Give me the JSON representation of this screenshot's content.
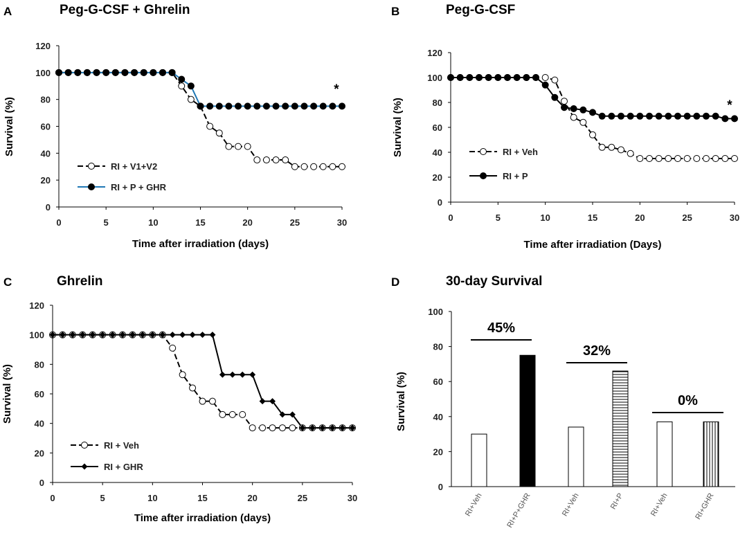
{
  "chart_data": [
    {
      "panel": "A",
      "type": "line",
      "title": "Peg-G-CSF + Ghrelin",
      "xlabel": "Time after irradiation (days)",
      "ylabel": "Survival (%)",
      "xlim": [
        0,
        30
      ],
      "ylim": [
        0,
        120
      ],
      "xticks": [
        0,
        5,
        10,
        15,
        20,
        25,
        30
      ],
      "yticks": [
        0,
        20,
        40,
        60,
        80,
        100,
        120
      ],
      "annotation": "*",
      "series": [
        {
          "name": "RI + V1+V2",
          "marker": "open-circle",
          "line_color": "#000000",
          "dashed": true,
          "x": [
            0,
            1,
            2,
            3,
            4,
            5,
            6,
            7,
            8,
            9,
            10,
            11,
            12,
            13,
            14,
            15,
            16,
            17,
            18,
            19,
            20,
            21,
            22,
            23,
            24,
            25,
            26,
            27,
            28,
            29,
            30
          ],
          "y": [
            100,
            100,
            100,
            100,
            100,
            100,
            100,
            100,
            100,
            100,
            100,
            100,
            100,
            90,
            80,
            75,
            60,
            55,
            45,
            45,
            45,
            35,
            35,
            35,
            35,
            30,
            30,
            30,
            30,
            30,
            30
          ]
        },
        {
          "name": "RI + P + GHR",
          "marker": "filled-circle",
          "line_color": "#1f77b4",
          "dashed": false,
          "x": [
            0,
            1,
            2,
            3,
            4,
            5,
            6,
            7,
            8,
            9,
            10,
            11,
            12,
            13,
            14,
            15,
            16,
            17,
            18,
            19,
            20,
            21,
            22,
            23,
            24,
            25,
            26,
            27,
            28,
            29,
            30
          ],
          "y": [
            100,
            100,
            100,
            100,
            100,
            100,
            100,
            100,
            100,
            100,
            100,
            100,
            100,
            95,
            90,
            75,
            75,
            75,
            75,
            75,
            75,
            75,
            75,
            75,
            75,
            75,
            75,
            75,
            75,
            75,
            75
          ]
        }
      ]
    },
    {
      "panel": "B",
      "type": "line",
      "title": "Peg-G-CSF",
      "xlabel": "Time after irradiation (Days)",
      "ylabel": "Survival (%)",
      "xlim": [
        0,
        30
      ],
      "ylim": [
        0,
        120
      ],
      "xticks": [
        0,
        5,
        10,
        15,
        20,
        25,
        30
      ],
      "yticks": [
        0,
        20,
        40,
        60,
        80,
        100,
        120
      ],
      "annotation": "*",
      "series": [
        {
          "name": "RI + Veh",
          "marker": "open-circle",
          "line_color": "#000000",
          "dashed": true,
          "x": [
            0,
            1,
            2,
            3,
            4,
            5,
            6,
            7,
            8,
            9,
            10,
            11,
            12,
            13,
            14,
            15,
            16,
            17,
            18,
            19,
            20,
            21,
            22,
            23,
            24,
            25,
            26,
            27,
            28,
            29,
            30
          ],
          "y": [
            100,
            100,
            100,
            100,
            100,
            100,
            100,
            100,
            100,
            100,
            100,
            98,
            81,
            68,
            64,
            54,
            44,
            44,
            42,
            39,
            35,
            35,
            35,
            35,
            35,
            35,
            35,
            35,
            35,
            35,
            35
          ]
        },
        {
          "name": "RI + P",
          "marker": "filled-circle",
          "line_color": "#000000",
          "dashed": false,
          "x": [
            0,
            1,
            2,
            3,
            4,
            5,
            6,
            7,
            8,
            9,
            10,
            11,
            12,
            13,
            14,
            15,
            16,
            17,
            18,
            19,
            20,
            21,
            22,
            23,
            24,
            25,
            26,
            27,
            28,
            29,
            30
          ],
          "y": [
            100,
            100,
            100,
            100,
            100,
            100,
            100,
            100,
            100,
            100,
            94,
            84,
            76,
            75,
            74,
            72,
            69,
            69,
            69,
            69,
            69,
            69,
            69,
            69,
            69,
            69,
            69,
            69,
            69,
            67,
            67
          ]
        }
      ]
    },
    {
      "panel": "C",
      "type": "line",
      "title": "Ghrelin",
      "xlabel": "Time after irradiation (days)",
      "ylabel": "Survival (%)",
      "xlim": [
        0,
        30
      ],
      "ylim": [
        0,
        120
      ],
      "xticks": [
        0,
        5,
        10,
        15,
        20,
        25,
        30
      ],
      "yticks": [
        0,
        20,
        40,
        60,
        80,
        100,
        120
      ],
      "series": [
        {
          "name": "RI + Veh",
          "marker": "open-circle",
          "line_color": "#000000",
          "dashed": true,
          "x": [
            0,
            1,
            2,
            3,
            4,
            5,
            6,
            7,
            8,
            9,
            10,
            11,
            12,
            13,
            14,
            15,
            16,
            17,
            18,
            19,
            20,
            21,
            22,
            23,
            24,
            25,
            26,
            27,
            28,
            29,
            30
          ],
          "y": [
            100,
            100,
            100,
            100,
            100,
            100,
            100,
            100,
            100,
            100,
            100,
            100,
            91,
            73,
            64,
            55,
            55,
            46,
            46,
            46,
            37,
            37,
            37,
            37,
            37,
            37,
            37,
            37,
            37,
            37,
            37
          ]
        },
        {
          "name": "RI + GHR",
          "marker": "filled-diamond",
          "line_color": "#000000",
          "dashed": false,
          "x": [
            0,
            1,
            2,
            3,
            4,
            5,
            6,
            7,
            8,
            9,
            10,
            11,
            12,
            13,
            14,
            15,
            16,
            17,
            18,
            19,
            20,
            21,
            22,
            23,
            24,
            25,
            26,
            27,
            28,
            29,
            30
          ],
          "y": [
            100,
            100,
            100,
            100,
            100,
            100,
            100,
            100,
            100,
            100,
            100,
            100,
            100,
            100,
            100,
            100,
            100,
            73,
            73,
            73,
            73,
            55,
            55,
            46,
            46,
            37,
            37,
            37,
            37,
            37,
            37
          ]
        }
      ]
    },
    {
      "panel": "D",
      "type": "bar",
      "title": "30-day Survival",
      "ylabel": "Survival (%)",
      "ylim": [
        0,
        100
      ],
      "yticks": [
        0,
        20,
        40,
        60,
        80,
        100
      ],
      "categories": [
        "RI+Veh",
        "RI+P+GHR",
        "RI+Veh",
        "RI+P",
        "RI+Veh",
        "RI+GHR"
      ],
      "values": [
        30,
        75,
        34,
        66,
        37,
        37
      ],
      "fills": [
        "open",
        "solid",
        "open",
        "horizontal-hatch",
        "open",
        "vertical-hatch"
      ],
      "comparisons": [
        {
          "label": "45%",
          "bars": [
            0,
            1
          ]
        },
        {
          "label": "32%",
          "bars": [
            2,
            3
          ]
        },
        {
          "label": "0%",
          "bars": [
            4,
            5
          ]
        }
      ]
    }
  ],
  "panels": [
    "A",
    "B",
    "C",
    "D"
  ]
}
